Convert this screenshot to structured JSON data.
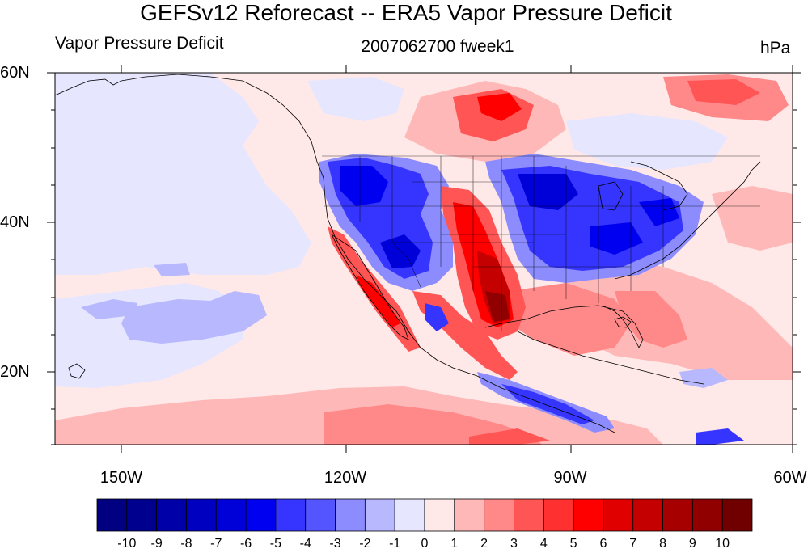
{
  "title": "GEFSv12 Reforecast -- ERA5 Vapor Pressure Deficit",
  "left_string": "Vapor Pressure Deficit",
  "center_string": "2007062700 fweek1",
  "right_string": "hPa",
  "lat_labels": [
    "60N",
    "40N",
    "20N"
  ],
  "lon_labels": [
    "150W",
    "120W",
    "90W",
    "60W"
  ],
  "colorbar": {
    "labels": [
      "-10",
      "-9",
      "-8",
      "-7",
      "-6",
      "-5",
      "-4",
      "-3",
      "-2",
      "-1",
      "0",
      "1",
      "2",
      "3",
      "4",
      "5",
      "6",
      "7",
      "8",
      "9",
      "10"
    ],
    "colors": [
      "#000080",
      "#00008f",
      "#0000a8",
      "#0000c0",
      "#0000d8",
      "#0000f0",
      "#3535ff",
      "#5555ff",
      "#8c8cff",
      "#b8b8ff",
      "#e6e6ff",
      "#ffe8e8",
      "#ffb8b8",
      "#ff8888",
      "#ff5555",
      "#ff3030",
      "#ff0000",
      "#e00000",
      "#c40000",
      "#a60000",
      "#900000",
      "#700000"
    ]
  }
}
